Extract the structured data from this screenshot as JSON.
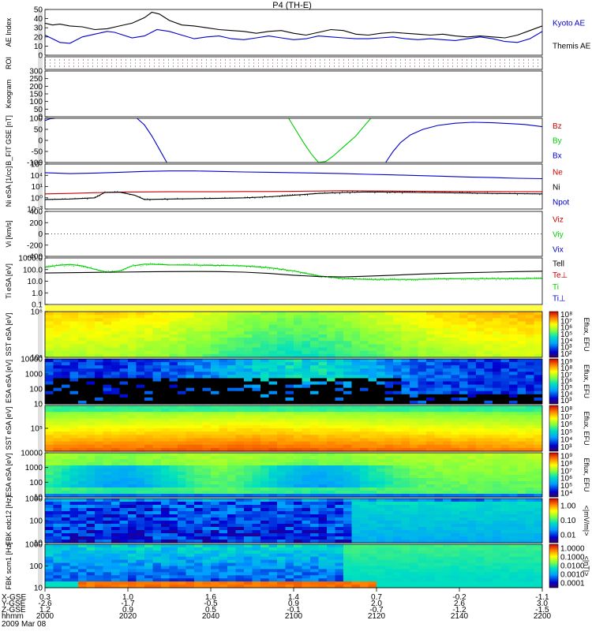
{
  "title": "P4 (TH-E)",
  "chart_data": [
    {
      "type": "line",
      "name": "ae",
      "ylabel": "AE Index",
      "ylim": [
        0,
        50
      ],
      "yticks": [
        "50",
        "40",
        "30",
        "20",
        "10",
        "0"
      ],
      "legend": [
        {
          "label": "Kyoto AE",
          "color": "#0000cc"
        },
        {
          "label": "Themis AE",
          "color": "#000000"
        }
      ],
      "series": [
        {
          "name": "Kyoto AE",
          "color": "#0000cc",
          "x": [
            2000,
            2003,
            2006,
            2010,
            2015,
            2020,
            2025,
            2028,
            2035,
            2040,
            2045,
            2050,
            2055,
            2060,
            2065,
            2070,
            2075,
            2080,
            2085,
            2090,
            2095,
            2100,
            2105,
            2110,
            2115,
            2120,
            2125,
            2130,
            2135,
            2140,
            2145,
            2150,
            2155,
            2160,
            2165,
            2170,
            2175,
            2180,
            2185,
            2190,
            2195,
            2200
          ],
          "y": [
            22,
            18,
            14,
            13,
            20,
            23,
            26,
            25,
            19,
            21,
            28,
            26,
            22,
            18,
            20,
            21,
            18,
            17,
            19,
            21,
            19,
            17,
            18,
            21,
            20,
            19,
            18,
            18,
            19,
            20,
            18,
            17,
            18,
            17,
            16,
            18,
            20,
            18,
            15,
            14,
            18,
            26
          ]
        },
        {
          "name": "Themis AE",
          "color": "#000000",
          "x": [
            2000,
            2003,
            2006,
            2010,
            2015,
            2020,
            2025,
            2030,
            2035,
            2040,
            2043,
            2046,
            2050,
            2055,
            2060,
            2065,
            2070,
            2075,
            2080,
            2085,
            2090,
            2095,
            2100,
            2105,
            2110,
            2115,
            2120,
            2125,
            2130,
            2135,
            2140,
            2145,
            2150,
            2155,
            2160,
            2165,
            2170,
            2175,
            2180,
            2185,
            2190,
            2195,
            2200
          ],
          "y": [
            35,
            33,
            34,
            32,
            31,
            28,
            29,
            32,
            35,
            41,
            47,
            45,
            38,
            33,
            32,
            30,
            28,
            27,
            26,
            24,
            26,
            27,
            24,
            22,
            25,
            28,
            27,
            23,
            22,
            24,
            25,
            24,
            23,
            22,
            23,
            21,
            20,
            21,
            20,
            19,
            22,
            27,
            32
          ]
        }
      ]
    },
    {
      "type": "line",
      "name": "roi",
      "ylabel": "ROI"
    },
    {
      "type": "line",
      "name": "keogram",
      "ylabel": "Keogram",
      "ylim": [
        0,
        300
      ],
      "yticks": [
        "300",
        "250",
        "200",
        "150",
        "100",
        "50",
        "0"
      ]
    },
    {
      "type": "line",
      "name": "bfit",
      "ylabel": "B_FIT GSE [nT]",
      "ylim": [
        -100,
        100
      ],
      "yticks": [
        "100",
        "50",
        "0",
        "-50",
        "-100"
      ],
      "legend": [
        {
          "label": "Bz",
          "color": "#cc0000"
        },
        {
          "label": "By",
          "color": "#00cc00"
        },
        {
          "label": "Bx",
          "color": "#0000cc"
        }
      ],
      "series": [
        {
          "name": "Bx seg1",
          "color": "#0000cc",
          "x": [
            2000,
            2002,
            2004
          ],
          "y": [
            90,
            98,
            100
          ]
        },
        {
          "name": "Bx seg2",
          "color": "#0000cc",
          "x": [
            2037,
            2040,
            2043,
            2046,
            2049
          ],
          "y": [
            100,
            70,
            20,
            -40,
            -100
          ]
        },
        {
          "name": "By",
          "color": "#00cc00",
          "x": [
            2098,
            2101,
            2104,
            2107,
            2110,
            2113,
            2116,
            2119,
            2122,
            2125,
            2128,
            2131
          ],
          "y": [
            100,
            45,
            -10,
            -60,
            -100,
            -95,
            -70,
            -40,
            -10,
            20,
            60,
            100
          ]
        },
        {
          "name": "Bx seg3",
          "color": "#0000cc",
          "x": [
            2137,
            2140,
            2143,
            2147,
            2152,
            2158,
            2165,
            2172,
            2180,
            2187,
            2193,
            2200
          ],
          "y": [
            -100,
            -50,
            -10,
            25,
            50,
            68,
            78,
            82,
            80,
            76,
            72,
            62
          ]
        }
      ]
    },
    {
      "type": "line",
      "name": "ni",
      "ylabel": "Ni eSA [1/cc]",
      "yscale": "log",
      "ylim": [
        0.001,
        100000
      ],
      "yticks": [
        "10⁵",
        "10⁴",
        "10¹",
        "10⁰",
        "10⁻³"
      ],
      "legend": [
        {
          "label": "Ne",
          "color": "#cc0000"
        },
        {
          "label": "Ni",
          "color": "#000000"
        },
        {
          "label": "Npot",
          "color": "#0000cc"
        }
      ],
      "series": [
        {
          "name": "Npot",
          "color": "#0000cc",
          "x": [
            2000,
            2010,
            2020,
            2030,
            2040,
            2050,
            2060,
            2070,
            2080,
            2090,
            2100,
            2110,
            2120,
            2130,
            2140,
            2150,
            2160,
            2170,
            2180,
            2190,
            2200
          ],
          "y": [
            3000,
            2000,
            2500,
            3500,
            5000,
            6000,
            6000,
            5000,
            4000,
            3500,
            3000,
            2500,
            2000,
            1500,
            1200,
            900,
            700,
            500,
            400,
            300,
            250
          ]
        },
        {
          "name": "Ne",
          "color": "#cc0000",
          "x": [
            2000,
            2010,
            2020,
            2030,
            2040,
            2050,
            2060,
            2070,
            2080,
            2090,
            2100,
            2110,
            2120,
            2130,
            2140,
            2150,
            2160,
            2170,
            2180,
            2190,
            2200
          ],
          "y": [
            0.5,
            0.6,
            0.8,
            1.0,
            1.1,
            1.2,
            1.2,
            1.2,
            1.3,
            1.3,
            1.4,
            1.6,
            1.8,
            1.7,
            1.6,
            1.5,
            1.4,
            1.3,
            1.3,
            1.2,
            1.2
          ]
        },
        {
          "name": "Ni",
          "color": "#000000",
          "x": [
            2000,
            2010,
            2020,
            2024,
            2030,
            2036,
            2040,
            2050,
            2060,
            2070,
            2080,
            2090,
            2100,
            2110,
            2120,
            2130,
            2140,
            2150,
            2160,
            2170,
            2180,
            2190,
            2200
          ],
          "y": [
            0.05,
            0.06,
            0.1,
            0.9,
            1.0,
            0.3,
            0.05,
            0.06,
            0.07,
            0.08,
            0.1,
            0.15,
            0.3,
            0.6,
            0.9,
            1.1,
            1.0,
            0.9,
            0.8,
            0.7,
            0.6,
            0.55,
            0.5
          ]
        }
      ]
    },
    {
      "type": "line",
      "name": "vi",
      "ylabel": "Vi [km/s]",
      "ylim": [
        -500,
        500
      ],
      "yticks": [
        "400",
        "200",
        "0",
        "-200",
        "-400"
      ],
      "legend": [
        {
          "label": "Viz",
          "color": "#cc0000"
        },
        {
          "label": "Viy",
          "color": "#00cc00"
        },
        {
          "label": "Vix",
          "color": "#0000cc"
        }
      ]
    },
    {
      "type": "line",
      "name": "ti",
      "ylabel": "Ti eSA [eV]",
      "yscale": "log",
      "ylim": [
        0.05,
        5000
      ],
      "yticks": [
        "1000.0",
        "100.0",
        "10.0",
        "1.0",
        "0.1"
      ],
      "legend": [
        {
          "label": "Tell",
          "color": "#000000"
        },
        {
          "label": "Te⊥",
          "color": "#cc0000"
        },
        {
          "label": "Ti",
          "color": "#00cc00"
        },
        {
          "label": "Ti⊥",
          "color": "#0000cc"
        }
      ],
      "series": [
        {
          "name": "Ti",
          "color": "#00cc00",
          "x": [
            2000,
            2005,
            2010,
            2015,
            2020,
            2025,
            2030,
            2035,
            2040,
            2045,
            2050,
            2060,
            2070,
            2080,
            2090,
            2100,
            2110,
            2120,
            2130,
            2140,
            2150,
            2160,
            2170,
            2180,
            2190,
            2200
          ],
          "y": [
            500,
            800,
            1000,
            700,
            300,
            150,
            200,
            700,
            1100,
            1000,
            900,
            850,
            800,
            700,
            450,
            200,
            60,
            30,
            25,
            25,
            25,
            28,
            30,
            30,
            30,
            32
          ]
        },
        {
          "name": "Tell",
          "color": "#000000",
          "x": [
            2000,
            2010,
            2020,
            2030,
            2040,
            2050,
            2060,
            2070,
            2080,
            2090,
            2100,
            2110,
            2120,
            2130,
            2140,
            2150,
            2160,
            2170,
            2180,
            2190,
            2200
          ],
          "y": [
            120,
            130,
            140,
            150,
            160,
            170,
            175,
            170,
            150,
            110,
            70,
            50,
            45,
            55,
            70,
            90,
            110,
            130,
            150,
            170,
            190
          ]
        }
      ]
    },
    {
      "type": "heatmap",
      "name": "sst1",
      "ylabel": "SST eSA [eV]",
      "yticks": [
        "10⁶",
        "10⁵"
      ],
      "cbar": {
        "label": "Eflux, EFU",
        "ticks": [
          "10⁸",
          "10⁷",
          "10⁶",
          "10⁵",
          "10⁴",
          "10³",
          "10²"
        ]
      }
    },
    {
      "type": "heatmap",
      "name": "esa1",
      "ylabel": "ESA eSA [eV]",
      "yticks": [
        "10000",
        "1000",
        "100",
        "10"
      ],
      "cbar": {
        "label": "Eflux, EFU",
        "ticks": [
          "10⁹",
          "10⁸",
          "10⁷",
          "10⁶",
          "10⁵",
          "10⁴",
          "10³"
        ]
      }
    },
    {
      "type": "heatmap",
      "name": "sst2",
      "ylabel": "SST eSA [eV]",
      "yticks": [
        "10⁵"
      ],
      "cbar": {
        "label": "Eflux, EFU",
        "ticks": [
          "10⁸",
          "10⁷",
          "10⁶",
          "10⁵",
          "10⁴",
          "10³"
        ]
      }
    },
    {
      "type": "heatmap",
      "name": "esa2",
      "ylabel": "ESA eSA [eV]",
      "yticks": [
        "10000",
        "1000",
        "100",
        "10"
      ],
      "cbar": {
        "label": "Eflux, EFU",
        "ticks": [
          "10⁹",
          "10⁸",
          "10⁷",
          "10⁶",
          "10⁵",
          "10⁴"
        ]
      }
    },
    {
      "type": "heatmap",
      "name": "fbk1",
      "ylabel": "FBK edc12 [Hz]",
      "yticks": [
        "1000",
        "100",
        "10"
      ],
      "cbar": {
        "label": "<|mV/m|>",
        "ticks": [
          "1.00",
          "0.10",
          "0.01"
        ]
      }
    },
    {
      "type": "heatmap",
      "name": "fbk2",
      "ylabel": "FBK scm1 [Hz]",
      "yticks": [
        "1000",
        "100",
        "10"
      ],
      "cbar": {
        "label": "<|nT|>",
        "ticks": [
          "1.0000",
          "0.1000",
          "0.0100",
          "0.0010",
          "0.0001"
        ]
      }
    }
  ],
  "xaxis": {
    "rows": [
      {
        "label": "X-GSE",
        "values": [
          "0.3",
          "1.0",
          "1.6",
          "1.4",
          "0.7",
          "-0.2",
          "-1.1"
        ]
      },
      {
        "label": "Y-GSE",
        "values": [
          "-2.6",
          "-1.7",
          "-0.5",
          "0.9",
          "2.0",
          "2.6",
          "3.0"
        ]
      },
      {
        "label": "Z-GSE",
        "values": [
          "1.2",
          "0.9",
          "0.5",
          "-0.1",
          "-0.7",
          "-1.2",
          "-1.5"
        ]
      },
      {
        "label": "hhmm",
        "values": [
          "2000",
          "2020",
          "2040",
          "2100",
          "2120",
          "2140",
          "2200"
        ]
      }
    ],
    "date": "2009 Mar 08",
    "range": [
      2000,
      2200
    ]
  }
}
